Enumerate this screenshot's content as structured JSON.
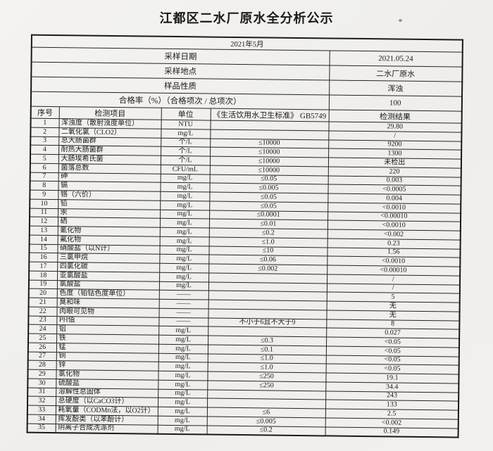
{
  "page": {
    "title": "江都区二水厂原水全分析公示",
    "period": "2021年5月"
  },
  "colors": {
    "paper": "#f1f0ee",
    "ink": "#1b1b1b",
    "table_line": "#242424"
  },
  "info_rows": [
    {
      "label": "采样日期",
      "value": "2021.05.24"
    },
    {
      "label": "采样地点",
      "value": "二水厂原水"
    },
    {
      "label": "样品性质",
      "value": "浑浊"
    },
    {
      "label": "合格率（%）（合格项次 / 总项次）",
      "value": "100"
    }
  ],
  "table": {
    "headers": [
      "序号",
      "检测项目",
      "单位",
      "《生活饮用水卫生标准》 GB5749",
      "检测结果"
    ],
    "rows": [
      [
        "1",
        "浑浊度（散射浊度单位）",
        "NTU",
        "",
        "29.80"
      ],
      [
        "2",
        "二氧化氯（CLO2）",
        "mg/L",
        "",
        "/"
      ],
      [
        "3",
        "总大肠菌群",
        "个/L",
        "≤10000",
        "9200"
      ],
      [
        "4",
        "耐热大肠菌群",
        "个/L",
        "≤10000",
        "1300"
      ],
      [
        "5",
        "大肠埃希氏菌",
        "个/L",
        "≤10000",
        "未检出"
      ],
      [
        "6",
        "菌落总数",
        "CFU/mL",
        "≤10000",
        "220"
      ],
      [
        "7",
        "砷",
        "mg/L",
        "≤0.05",
        "0.003"
      ],
      [
        "8",
        "镉",
        "mg/L",
        "≤0.005",
        "<0.0005"
      ],
      [
        "9",
        "铬（六价）",
        "mg/L",
        "≤0.05",
        "0.004"
      ],
      [
        "10",
        "铅",
        "mg/L",
        "≤0.05",
        "<0.0010"
      ],
      [
        "11",
        "汞",
        "mg/L",
        "≤0.0001",
        "<0.00010"
      ],
      [
        "12",
        "硒",
        "mg/L",
        "≤0.01",
        "<0.0010"
      ],
      [
        "13",
        "氰化物",
        "mg/L",
        "≤0.2",
        "<0.002"
      ],
      [
        "14",
        "氟化物",
        "mg/L",
        "≤1.0",
        "0.23"
      ],
      [
        "15",
        "硝酸盐（以N计）",
        "mg/L",
        "≤10",
        "1.56"
      ],
      [
        "16",
        "三氯甲烷",
        "mg/L",
        "≤0.06",
        "<0.0010"
      ],
      [
        "17",
        "四氯化碳",
        "mg/L",
        "≤0.002",
        "<0.00010"
      ],
      [
        "18",
        "亚氯酸盐",
        "mg/L",
        "",
        "/"
      ],
      [
        "19",
        "氯酸盐",
        "mg/L",
        "",
        "/"
      ],
      [
        "20",
        "色度（铂钴色度单位）",
        "——",
        "",
        "5"
      ],
      [
        "21",
        "臭和味",
        "——",
        "",
        "无"
      ],
      [
        "22",
        "肉眼可见物",
        "——",
        "",
        "无"
      ],
      [
        "23",
        "PH值",
        "——",
        "不小于6且不大于9",
        "8"
      ],
      [
        "24",
        "铝",
        "mg/L",
        "",
        "0.027"
      ],
      [
        "25",
        "铁",
        "mg/L",
        "≤0.3",
        "<0.05"
      ],
      [
        "26",
        "锰",
        "mg/L",
        "≤0.1",
        "<0.05"
      ],
      [
        "27",
        "铜",
        "mg/L",
        "≤1.0",
        "<0.05"
      ],
      [
        "28",
        "锌",
        "mg/L",
        "≤1.0",
        "<0.05"
      ],
      [
        "29",
        "氯化物",
        "mg/L",
        "≤250",
        "19.1"
      ],
      [
        "30",
        "硫酸盐",
        "mg/L",
        "≤250",
        "34.4"
      ],
      [
        "31",
        "溶解性总固体",
        "mg/L",
        "",
        "243"
      ],
      [
        "32",
        "总硬度（以CaCO3计）",
        "mg/L",
        "",
        "133"
      ],
      [
        "33",
        "耗氧量（CODMn法，以O2计）",
        "mg/L",
        "≤6",
        "2.5"
      ],
      [
        "34",
        "挥发酚类（以苯酚计）",
        "mg/L",
        "≤0.005",
        "<0.002"
      ],
      [
        "35",
        "阴离子合成洗涤剂",
        "mg/L",
        "≤0.2",
        "0.149"
      ]
    ]
  }
}
